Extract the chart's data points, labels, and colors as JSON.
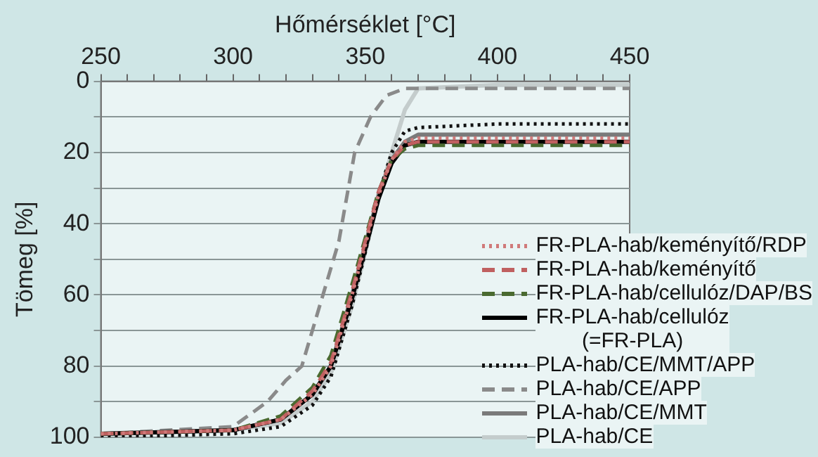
{
  "chart_data": {
    "type": "line",
    "xlabel": "Hőmérséklet [°C]",
    "ylabel": "Tömeg [%]",
    "xlim": [
      250,
      450
    ],
    "xticks": [
      250,
      {
        "value": 260,
        "label": null
      },
      {
        "value": 270,
        "label": null
      },
      {
        "value": 280,
        "label": null
      },
      {
        "value": 290,
        "label": null
      },
      300,
      {
        "value": 310,
        "label": null
      },
      {
        "value": 320,
        "label": null
      },
      {
        "value": 330,
        "label": null
      },
      {
        "value": 340,
        "label": null
      },
      350,
      {
        "value": 360,
        "label": null
      },
      {
        "value": 370,
        "label": null
      },
      {
        "value": 380,
        "label": null
      },
      {
        "value": 390,
        "label": null
      },
      400,
      {
        "value": 410,
        "label": null
      },
      {
        "value": 420,
        "label": null
      },
      {
        "value": 430,
        "label": null
      },
      {
        "value": 440,
        "label": null
      },
      450
    ],
    "ylim": [
      100,
      0
    ],
    "yticks": [
      0,
      {
        "value": 10,
        "label": null
      },
      20,
      {
        "value": 30,
        "label": null
      },
      40,
      {
        "value": 50,
        "label": null
      },
      60,
      {
        "value": 70,
        "label": null
      },
      80,
      {
        "value": 90,
        "label": null
      },
      100
    ],
    "grid": "y",
    "legend": "bottom right",
    "marker": "none",
    "series": [
      {
        "name": "FR-PLA-hab/keményítő/RDP",
        "color": "#d07a7a",
        "line_style": "dotted",
        "x": [
          250,
          300,
          318,
          330,
          337,
          345,
          350,
          355,
          360,
          365,
          370,
          400,
          450
        ],
        "values": [
          99,
          98,
          95,
          88,
          80,
          60,
          46,
          32,
          22,
          17,
          16,
          16,
          16
        ]
      },
      {
        "name": "FR-PLA-hab/keményítő",
        "color": "#c06060",
        "line_style": "dashed",
        "x": [
          250,
          300,
          318,
          330,
          337,
          345,
          350,
          355,
          360,
          365,
          370,
          400,
          450
        ],
        "values": [
          99,
          98,
          95,
          87,
          79,
          59,
          45,
          31,
          22,
          18,
          17,
          17,
          17
        ]
      },
      {
        "name": "FR-PLA-hab/cellulóz/DAP/BS",
        "color": "#4a6a30",
        "line_style": "dashed",
        "x": [
          250,
          300,
          318,
          330,
          337,
          345,
          350,
          355,
          360,
          365,
          370,
          400,
          450
        ],
        "values": [
          99,
          98,
          94,
          86,
          77,
          57,
          44,
          31,
          22,
          19,
          18,
          18,
          18
        ]
      },
      {
        "name": "FR-PLA-hab/cellulóz\n(=FR-PLA)",
        "color": "#000000",
        "line_style": "solid",
        "x": [
          250,
          300,
          318,
          330,
          337,
          345,
          350,
          355,
          360,
          365,
          370,
          400,
          450
        ],
        "values": [
          99,
          98,
          95,
          88,
          80,
          61,
          47,
          33,
          23,
          18,
          17,
          17,
          17
        ]
      },
      {
        "name": "PLA-hab/CE/MMT/APP",
        "color": "#111111",
        "line_style": "dotted",
        "x": [
          250,
          300,
          318,
          330,
          337,
          345,
          350,
          355,
          360,
          365,
          370,
          400,
          450
        ],
        "values": [
          100,
          99,
          97,
          91,
          83,
          63,
          48,
          32,
          20,
          14,
          13,
          12,
          12
        ]
      },
      {
        "name": "PLA-hab/CE/APP",
        "color": "#8a8a8a",
        "line_style": "dashed",
        "x": [
          250,
          300,
          313,
          320,
          326,
          334,
          340,
          346,
          352,
          358,
          365,
          400,
          450
        ],
        "values": [
          99,
          97,
          90,
          84,
          80,
          60,
          45,
          20,
          10,
          4,
          2,
          2,
          2
        ]
      },
      {
        "name": "PLA-hab/CE/MMT",
        "color": "#7a7a7a",
        "line_style": "solid",
        "x": [
          250,
          300,
          318,
          330,
          337,
          345,
          350,
          355,
          360,
          365,
          370,
          400,
          450
        ],
        "values": [
          99,
          98,
          95,
          88,
          80,
          60,
          46,
          32,
          22,
          17,
          15,
          15,
          15
        ]
      },
      {
        "name": "PLA-hab/CE",
        "color": "#c4cccc",
        "line_style": "solid",
        "x": [
          250,
          300,
          318,
          330,
          337,
          345,
          350,
          355,
          360,
          365,
          370,
          400,
          450
        ],
        "values": [
          99,
          98,
          96,
          90,
          82,
          63,
          48,
          33,
          20,
          8,
          2,
          1,
          1
        ]
      }
    ]
  }
}
